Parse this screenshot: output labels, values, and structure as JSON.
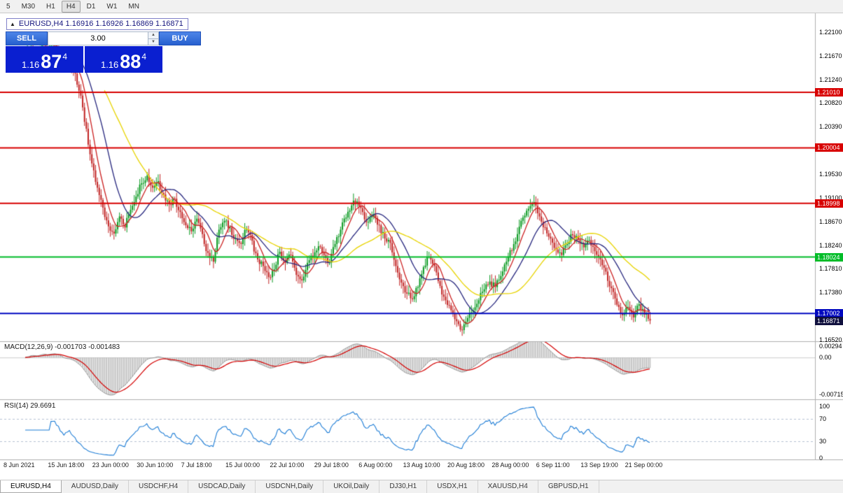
{
  "toolbar": {
    "timeframes": [
      {
        "label": "5",
        "active": false
      },
      {
        "label": "M30",
        "active": false
      },
      {
        "label": "H1",
        "active": false
      },
      {
        "label": "H4",
        "active": true
      },
      {
        "label": "D1",
        "active": false
      },
      {
        "label": "W1",
        "active": false
      },
      {
        "label": "MN",
        "active": false
      }
    ]
  },
  "chart_header": {
    "collapse_arrow": "▲",
    "title": "EURUSD,H4 1.16916 1.16926 1.16869 1.16871"
  },
  "trade_panel": {
    "sell_label": "SELL",
    "buy_label": "BUY",
    "volume": "3.00",
    "spinner_up": "▲",
    "spinner_down": "▼",
    "sell_price": {
      "prefix": "1.16",
      "big": "87",
      "pip": "4"
    },
    "buy_price": {
      "prefix": "1.16",
      "big": "88",
      "pip": "4"
    }
  },
  "price_axis": {
    "labels": [
      "1.22100",
      "1.21670",
      "1.21240",
      "1.20820",
      "1.20390",
      "1.19530",
      "1.19100",
      "1.18670",
      "1.18240",
      "1.17810",
      "1.17380",
      "1.16520"
    ]
  },
  "hlines": [
    {
      "price": 1.2101,
      "label": "1.21010",
      "color": "#d80000"
    },
    {
      "price": 1.20004,
      "label": "1.20004",
      "color": "#d80000"
    },
    {
      "price": 1.18998,
      "label": "1.18998",
      "color": "#d80000"
    },
    {
      "price": 1.18024,
      "label": "1.18024",
      "color": "#00bc28"
    },
    {
      "price": 1.17002,
      "label": "1.17002",
      "color": "#0008c0"
    }
  ],
  "current_price": {
    "value": 1.16871,
    "label": "1.16871",
    "color": "#10103e"
  },
  "macd_panel": {
    "label": "MACD(12,26,9) -0.001703 -0.001483",
    "axis_labels": [
      {
        "text": "0.00294",
        "value": 0.00294
      },
      {
        "text": "0.00",
        "value": 0
      },
      {
        "text": "-0.00715",
        "value": -0.00715
      }
    ]
  },
  "rsi_panel": {
    "label": "RSI(14) 29.6691",
    "axis_labels": [
      {
        "text": "100",
        "value": 100
      },
      {
        "text": "70",
        "value": 70
      },
      {
        "text": "30",
        "value": 30
      },
      {
        "text": "0",
        "value": 0
      }
    ],
    "levels": [
      70,
      30
    ]
  },
  "time_axis": [
    "8 Jun 2021",
    "15 Jun 18:00",
    "23 Jun 00:00",
    "30 Jun 10:00",
    "7 Jul 18:00",
    "15 Jul 00:00",
    "22 Jul 10:00",
    "29 Jul 18:00",
    "6 Aug 00:00",
    "13 Aug 10:00",
    "20 Aug 18:00",
    "28 Aug 00:00",
    "6 Sep 11:00",
    "13 Sep 19:00",
    "21 Sep 00:00"
  ],
  "tabs": [
    {
      "label": "EURUSD,H4",
      "active": true
    },
    {
      "label": "AUDUSD,Daily",
      "active": false
    },
    {
      "label": "USDCHF,H4",
      "active": false
    },
    {
      "label": "USDCAD,Daily",
      "active": false
    },
    {
      "label": "USDCNH,Daily",
      "active": false
    },
    {
      "label": "UKOil,Daily",
      "active": false
    },
    {
      "label": "DJ30,H1",
      "active": false
    },
    {
      "label": "USDX,H1",
      "active": false
    },
    {
      "label": "XAUUSD,H4",
      "active": false
    },
    {
      "label": "GBPUSD,H1",
      "active": false
    }
  ],
  "chart_data": {
    "type": "candlestick",
    "symbol": "EURUSD",
    "timeframe": "H4",
    "ohlc_current": {
      "open": 1.16916,
      "high": 1.16926,
      "low": 1.16869,
      "close": 1.16871
    },
    "visible_price_range": [
      1.1651,
      1.2243
    ],
    "up_color": "#0b9a22",
    "down_color": "#c22626",
    "close_anchors": [
      1.2158,
      1.2182,
      1.2165,
      1.2188,
      1.2172,
      1.219,
      1.2178,
      1.2148,
      1.2162,
      1.2135,
      1.2095,
      1.2035,
      1.1972,
      1.1928,
      1.1892,
      1.1858,
      1.1845,
      1.1876,
      1.1856,
      1.1888,
      1.1912,
      1.1936,
      1.195,
      1.1928,
      1.194,
      1.1916,
      1.1898,
      1.1908,
      1.1884,
      1.186,
      1.1849,
      1.1872,
      1.1844,
      1.181,
      1.1794,
      1.1852,
      1.1868,
      1.1856,
      1.1836,
      1.1826,
      1.1852,
      1.1832,
      1.1798,
      1.1786,
      1.1766,
      1.178,
      1.1812,
      1.1792,
      1.1806,
      1.177,
      1.176,
      1.1792,
      1.1803,
      1.1822,
      1.1806,
      1.1792,
      1.1826,
      1.1852,
      1.1874,
      1.1896,
      1.1903,
      1.1884,
      1.1866,
      1.188,
      1.186,
      1.1836,
      1.1828,
      1.1786,
      1.1756,
      1.1736,
      1.1726,
      1.1748,
      1.1784,
      1.1803,
      1.1786,
      1.175,
      1.1724,
      1.1706,
      1.1686,
      1.167,
      1.1692,
      1.1706,
      1.1724,
      1.1744,
      1.1758,
      1.1748,
      1.1768,
      1.1794,
      1.1814,
      1.1844,
      1.1874,
      1.189,
      1.1902,
      1.1876,
      1.1856,
      1.1836,
      1.1816,
      1.1806,
      1.1826,
      1.1842,
      1.1834,
      1.182,
      1.1833,
      1.1813,
      1.1798,
      1.1776,
      1.1746,
      1.1716,
      1.1697,
      1.1712,
      1.1693,
      1.1717,
      1.1698,
      1.16871
    ],
    "moving_averages": [
      {
        "period": 8,
        "color": "#cc2222"
      },
      {
        "period": 20,
        "color": "#26267e"
      },
      {
        "period": 44,
        "color": "#e8d400"
      }
    ],
    "indicators": [
      {
        "name": "MACD",
        "params": [
          12,
          26,
          9
        ],
        "current_values": [
          -0.001703,
          -0.001483
        ],
        "axis_range": [
          0.003,
          -0.0078
        ]
      },
      {
        "name": "RSI",
        "params": [
          14
        ],
        "current_value": 29.6691,
        "levels": [
          70,
          30
        ],
        "axis_range": [
          100,
          0
        ]
      }
    ],
    "horizontal_lines": [
      1.2101,
      1.20004,
      1.18998,
      1.18024,
      1.17002
    ]
  }
}
